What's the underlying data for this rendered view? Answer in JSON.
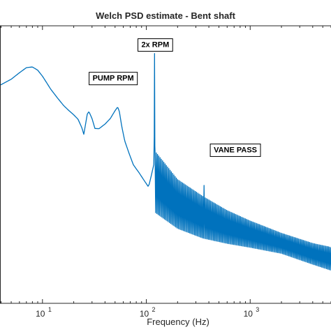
{
  "chart_data": {
    "type": "line",
    "title": "Welch PSD estimate - Bent shaft",
    "xlabel": "Frequency (Hz)",
    "ylabel": "",
    "xscale": "log",
    "xlim": [
      3.9,
      6000
    ],
    "ylim": [
      -160,
      -40
    ],
    "grid": false,
    "x_ticks": [
      {
        "base": "10",
        "exp": "1",
        "value": 10
      },
      {
        "base": "10",
        "exp": "2",
        "value": 100
      },
      {
        "base": "10",
        "exp": "3",
        "value": 1000
      }
    ],
    "series": [
      {
        "color": "#0072BD",
        "broad_curve": {
          "x": [
            3.9,
            5,
            6,
            7,
            8,
            9,
            10,
            11,
            12,
            14,
            16,
            18,
            20,
            22,
            24,
            25,
            26,
            27,
            28,
            30,
            32,
            35,
            40,
            45,
            50,
            53,
            55,
            58,
            62,
            68,
            75,
            85,
            95,
            105
          ],
          "y": [
            -65.7,
            -63.1,
            -60.3,
            -58.1,
            -57.8,
            -59.2,
            -61.8,
            -64.7,
            -67.4,
            -71.3,
            -74.5,
            -76.7,
            -78.5,
            -80.4,
            -84.2,
            -86.9,
            -82.5,
            -78.2,
            -77.1,
            -80.1,
            -84.4,
            -84.5,
            -82.5,
            -80.1,
            -76.7,
            -75.1,
            -77.1,
            -83.5,
            -89.8,
            -95.0,
            -100.1,
            -103.5,
            -106.8,
            -109.7
          ]
        },
        "peaks": [
          {
            "x": 120,
            "y": -52.0,
            "label": "2x RPM"
          },
          {
            "x": 360,
            "y": -109.0,
            "label": "VANE PASS"
          }
        ],
        "high_freq_band": {
          "x": [
            120,
            200,
            350,
            600,
            1000,
            2000,
            4000,
            6000
          ],
          "upper": [
            -94.0,
            -106.5,
            -113.8,
            -119.9,
            -124.4,
            -129.7,
            -134.1,
            -135.8
          ],
          "lower": [
            -120.5,
            -127.6,
            -131.8,
            -134.1,
            -135.8,
            -138.4,
            -143.1,
            -145.7
          ]
        }
      }
    ],
    "annotations": [
      {
        "label": "2x RPM",
        "x": 122,
        "y": -48.0
      },
      {
        "label": "PUMP RPM",
        "x": 48,
        "y": -62.5
      },
      {
        "label": "VANE PASS",
        "x": 720,
        "y": -93.5
      }
    ]
  }
}
